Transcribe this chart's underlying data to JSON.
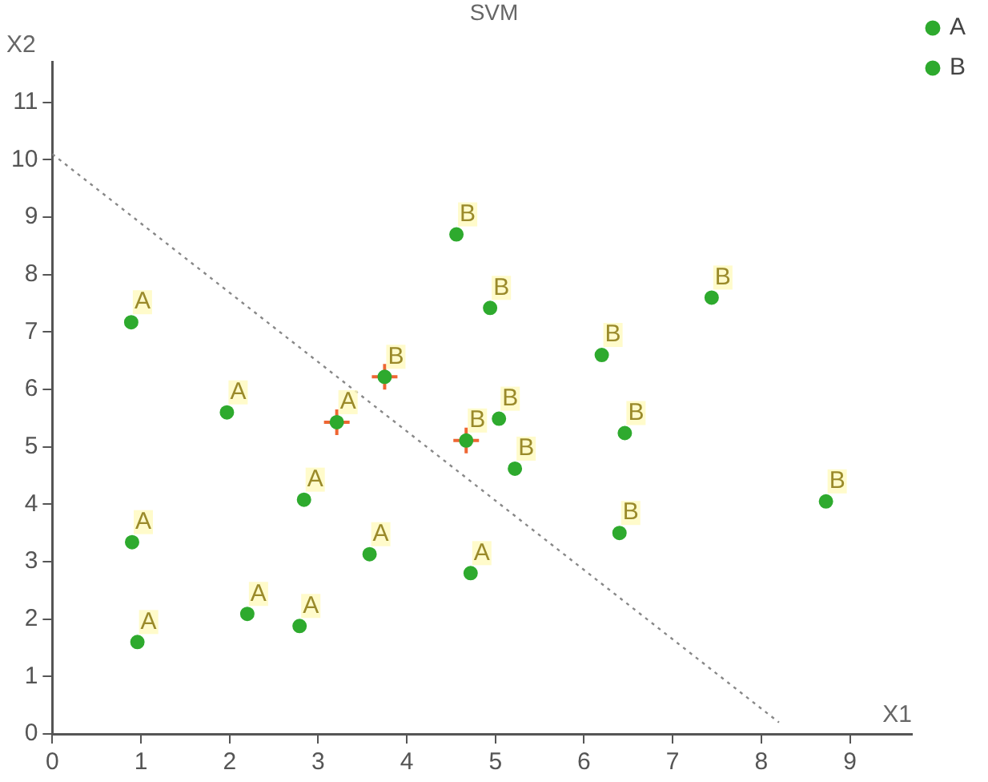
{
  "chart_data": {
    "type": "scatter",
    "title": "SVM",
    "xlabel": "X1",
    "ylabel": "X2",
    "xlim": [
      0,
      9.7
    ],
    "xticks": [
      0,
      1,
      2,
      3,
      4,
      5,
      6,
      7,
      8,
      9
    ],
    "ylim": [
      0,
      11.7
    ],
    "yticks": [
      0,
      1,
      2,
      3,
      4,
      5,
      6,
      7,
      8,
      9,
      10,
      11
    ],
    "grid": false,
    "legend": "top right",
    "marker": "circle",
    "series": [
      {
        "name": "A",
        "color": "#2eaa2e",
        "x": [
          0.89,
          1.97,
          3.21,
          2.84,
          0.9,
          0.96,
          2.2,
          2.79,
          3.58,
          4.72
        ],
        "values": [
          7.17,
          5.6,
          5.43,
          4.08,
          3.34,
          1.6,
          2.09,
          1.88,
          3.13,
          2.8
        ]
      },
      {
        "name": "B",
        "color": "#2eaa2e",
        "x": [
          4.56,
          4.94,
          3.75,
          4.67,
          5.04,
          5.22,
          6.2,
          6.46,
          6.4,
          7.44,
          8.73
        ],
        "values": [
          8.7,
          7.42,
          6.22,
          5.11,
          5.49,
          4.62,
          6.6,
          5.24,
          3.5,
          7.6,
          4.05
        ]
      },
      {
        "marker": "cross",
        "color": "#ee6633",
        "x": [
          3.21,
          3.75,
          4.67
        ],
        "values": [
          5.43,
          6.22,
          5.11
        ]
      },
      {
        "type": "line",
        "color": "#888888",
        "line_style": "dotted",
        "marker": "none",
        "x": [
          0,
          8.2
        ],
        "values": [
          10.1,
          0.2
        ]
      }
    ]
  }
}
